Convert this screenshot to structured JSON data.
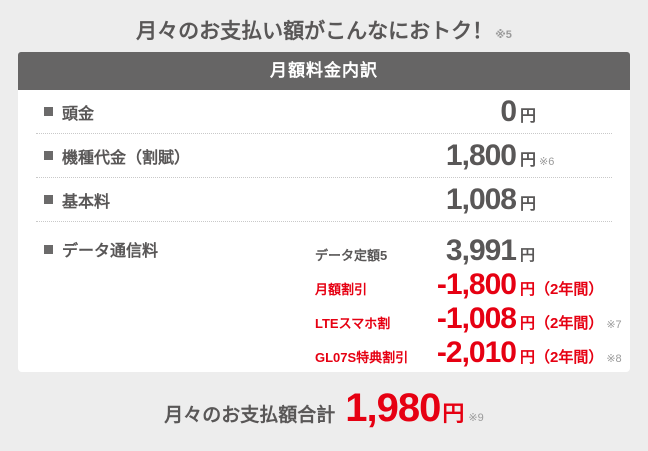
{
  "page": {
    "title": "月々のお支払い額がこんなにおトク！",
    "title_note": "※5"
  },
  "table": {
    "header": "月額料金内訳",
    "rows": [
      {
        "label": "頭金",
        "value": "0",
        "unit": "円",
        "note": ""
      },
      {
        "label": "機種代金（割賦）",
        "value": "1,800",
        "unit": "円",
        "note": "※6"
      },
      {
        "label": "基本料",
        "value": "1,008",
        "unit": "円",
        "note": ""
      },
      {
        "label": "データ通信料",
        "sub_rows": [
          {
            "label": "データ定額5",
            "value": "3,991",
            "unit": "円",
            "note": ""
          },
          {
            "label": "月額割引",
            "value": "-1,800",
            "unit": "円（2年間）",
            "note": ""
          },
          {
            "label": "LTEスマホ割",
            "value": "-1,008",
            "unit": "円（2年間）",
            "note": "※7"
          },
          {
            "label": "GL07S特典割引",
            "value": "-2,010",
            "unit": "円（2年間）",
            "note": "※8"
          }
        ]
      }
    ]
  },
  "summary": {
    "label": "月々のお支払額合計",
    "value": "1,980",
    "unit": "円",
    "note": "※9"
  },
  "colors": {
    "accent_red": "#e60012",
    "header_gray": "#666565",
    "text_gray": "#595757",
    "page_background": "#ededed",
    "note_gray": "#9a9a9a"
  }
}
